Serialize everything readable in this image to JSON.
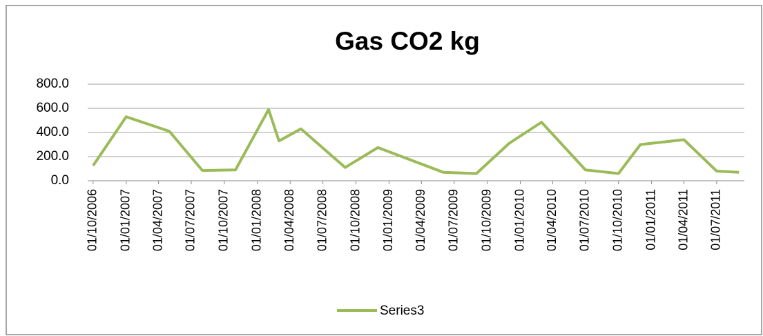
{
  "chart_data": {
    "type": "line",
    "title": "Gas CO2 kg",
    "x": [
      "01/10/2006",
      "01/01/2007",
      "01/05/2007",
      "01/08/2007",
      "01/11/2007",
      "01/02/2008",
      "01/03/2008",
      "01/05/2008",
      "01/09/2008",
      "01/12/2008",
      "01/06/2009",
      "01/09/2009",
      "01/12/2009",
      "01/03/2010",
      "01/07/2010",
      "01/10/2010",
      "01/12/2010",
      "01/04/2011",
      "01/07/2011",
      "01/09/2011"
    ],
    "series": [
      {
        "name": "Series3",
        "color": "#9bbb59",
        "values": [
          125,
          530,
          410,
          85,
          90,
          590,
          330,
          430,
          110,
          275,
          70,
          60,
          310,
          485,
          90,
          60,
          300,
          340,
          80,
          70
        ]
      }
    ],
    "xlim": [
      "16/09/2006",
      "16/09/2011"
    ],
    "xticks": [
      "01/10/2006",
      "01/01/2007",
      "01/04/2007",
      "01/07/2007",
      "01/10/2007",
      "01/01/2008",
      "01/04/2008",
      "01/07/2008",
      "01/10/2008",
      "01/01/2009",
      "01/04/2009",
      "01/07/2009",
      "01/10/2009",
      "01/01/2010",
      "01/04/2010",
      "01/07/2010",
      "01/10/2010",
      "01/01/2011",
      "01/04/2011",
      "01/07/2011"
    ],
    "ylim": [
      0,
      800
    ],
    "yticks": [
      {
        "value": 0,
        "label": "0.0"
      },
      {
        "value": 200,
        "label": "200.0"
      },
      {
        "value": 400,
        "label": "400.0"
      },
      {
        "value": 600,
        "label": "600.0"
      },
      {
        "value": 800,
        "label": "800.0"
      }
    ],
    "grid": true,
    "legend": "bottom"
  }
}
